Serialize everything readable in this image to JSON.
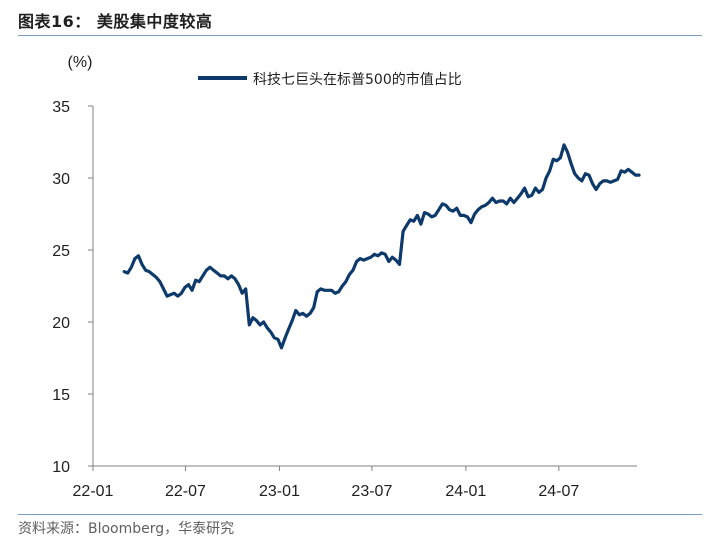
{
  "figure": {
    "title": "图表16：  美股集中度较高",
    "source": "资料来源：Bloomberg，华泰研究"
  },
  "colors": {
    "series": "#0d3a6b",
    "axis": "#808080",
    "rule": "#7a9cc6"
  },
  "chart_data": {
    "type": "line",
    "unit": "(%)",
    "ylim": [
      10,
      35
    ],
    "yticks": [
      "10",
      "15",
      "20",
      "25",
      "30",
      "35"
    ],
    "xlim": [
      "2022-01",
      "2024-12"
    ],
    "xticks": [
      {
        "label": "22-01",
        "x": "2022-01"
      },
      {
        "label": "22-07",
        "x": "2022-07"
      },
      {
        "label": "23-01",
        "x": "2023-01"
      },
      {
        "label": "23-07",
        "x": "2023-07"
      },
      {
        "label": "24-01",
        "x": "2024-01"
      },
      {
        "label": "24-07",
        "x": "2024-07"
      }
    ],
    "grid": false,
    "legend": "top-center",
    "series": [
      {
        "name": "科技七巨头在标普500的市值占比",
        "x": [
          "2022-03-03",
          "2022-03-10",
          "2022-03-17",
          "2022-03-24",
          "2022-03-31",
          "2022-04-07",
          "2022-04-14",
          "2022-04-21",
          "2022-04-28",
          "2022-05-05",
          "2022-05-12",
          "2022-05-19",
          "2022-05-26",
          "2022-06-02",
          "2022-06-09",
          "2022-06-16",
          "2022-06-23",
          "2022-06-30",
          "2022-07-07",
          "2022-07-14",
          "2022-07-21",
          "2022-07-28",
          "2022-08-04",
          "2022-08-11",
          "2022-08-18",
          "2022-08-25",
          "2022-09-01",
          "2022-09-08",
          "2022-09-15",
          "2022-09-22",
          "2022-09-29",
          "2022-10-06",
          "2022-10-13",
          "2022-10-20",
          "2022-10-27",
          "2022-11-03",
          "2022-11-10",
          "2022-11-17",
          "2022-11-24",
          "2022-12-01",
          "2022-12-08",
          "2022-12-15",
          "2022-12-22",
          "2022-12-29",
          "2023-01-05",
          "2023-01-12",
          "2023-01-19",
          "2023-01-26",
          "2023-02-02",
          "2023-02-09",
          "2023-02-16",
          "2023-02-23",
          "2023-03-02",
          "2023-03-09",
          "2023-03-16",
          "2023-03-23",
          "2023-03-30",
          "2023-04-06",
          "2023-04-13",
          "2023-04-20",
          "2023-04-27",
          "2023-05-04",
          "2023-05-11",
          "2023-05-18",
          "2023-05-25",
          "2023-06-01",
          "2023-06-08",
          "2023-06-15",
          "2023-06-22",
          "2023-06-29",
          "2023-07-06",
          "2023-07-13",
          "2023-07-20",
          "2023-07-27",
          "2023-08-03",
          "2023-08-10",
          "2023-08-17",
          "2023-08-24",
          "2023-08-31",
          "2023-09-07",
          "2023-09-14",
          "2023-09-21",
          "2023-09-28",
          "2023-10-05",
          "2023-10-12",
          "2023-10-19",
          "2023-10-26",
          "2023-11-02",
          "2023-11-09",
          "2023-11-16",
          "2023-11-23",
          "2023-11-30",
          "2023-12-07",
          "2023-12-14",
          "2023-12-21",
          "2023-12-28",
          "2024-01-04",
          "2024-01-11",
          "2024-01-18",
          "2024-01-25",
          "2024-02-01",
          "2024-02-08",
          "2024-02-15",
          "2024-02-22",
          "2024-02-29",
          "2024-03-07",
          "2024-03-14",
          "2024-03-21",
          "2024-03-28",
          "2024-04-04",
          "2024-04-11",
          "2024-04-18",
          "2024-04-25",
          "2024-05-02",
          "2024-05-09",
          "2024-05-16",
          "2024-05-23",
          "2024-05-30",
          "2024-06-06",
          "2024-06-13",
          "2024-06-20",
          "2024-06-27",
          "2024-07-04",
          "2024-07-11",
          "2024-07-18",
          "2024-07-25",
          "2024-08-01",
          "2024-08-08",
          "2024-08-15",
          "2024-08-22",
          "2024-08-29",
          "2024-09-05",
          "2024-09-12",
          "2024-09-19",
          "2024-09-26",
          "2024-10-03",
          "2024-10-10",
          "2024-10-17",
          "2024-10-24",
          "2024-10-31",
          "2024-11-07",
          "2024-11-14",
          "2024-11-21",
          "2024-11-28",
          "2024-12-05"
        ],
        "values": [
          23.5,
          23.4,
          23.8,
          24.4,
          24.6,
          24.0,
          23.6,
          23.5,
          23.3,
          23.1,
          22.8,
          22.3,
          21.8,
          21.9,
          22.0,
          21.8,
          22.0,
          22.4,
          22.6,
          22.2,
          22.9,
          22.8,
          23.2,
          23.6,
          23.8,
          23.6,
          23.4,
          23.2,
          23.2,
          23.0,
          23.2,
          23.0,
          22.6,
          22.0,
          22.3,
          19.8,
          20.3,
          20.1,
          19.8,
          20.0,
          19.6,
          19.3,
          18.9,
          18.8,
          18.2,
          18.9,
          19.5,
          20.1,
          20.8,
          20.5,
          20.6,
          20.4,
          20.6,
          21.0,
          22.1,
          22.3,
          22.2,
          22.2,
          22.2,
          22.0,
          22.1,
          22.5,
          22.8,
          23.3,
          23.6,
          24.2,
          24.4,
          24.3,
          24.4,
          24.5,
          24.7,
          24.6,
          24.8,
          24.7,
          24.2,
          24.5,
          24.3,
          24.0,
          26.3,
          26.7,
          27.1,
          27.0,
          27.4,
          26.8,
          27.6,
          27.5,
          27.3,
          27.4,
          27.8,
          28.2,
          28.1,
          27.8,
          27.7,
          27.9,
          27.4,
          27.4,
          27.3,
          26.9,
          27.5,
          27.8,
          28.0,
          28.1,
          28.3,
          28.6,
          28.3,
          28.4,
          28.4,
          28.2,
          28.6,
          28.3,
          28.6,
          28.9,
          29.3,
          28.7,
          28.8,
          29.3,
          29.0,
          29.2,
          30.0,
          30.5,
          31.3,
          31.2,
          31.4,
          32.3,
          31.8,
          31.0,
          30.3,
          30.0,
          29.8,
          30.3,
          30.2,
          29.6,
          29.2,
          29.6,
          29.8,
          29.8,
          29.7,
          29.8,
          29.9,
          30.5,
          30.4,
          30.6,
          30.4,
          30.2,
          30.2
        ]
      }
    ]
  }
}
